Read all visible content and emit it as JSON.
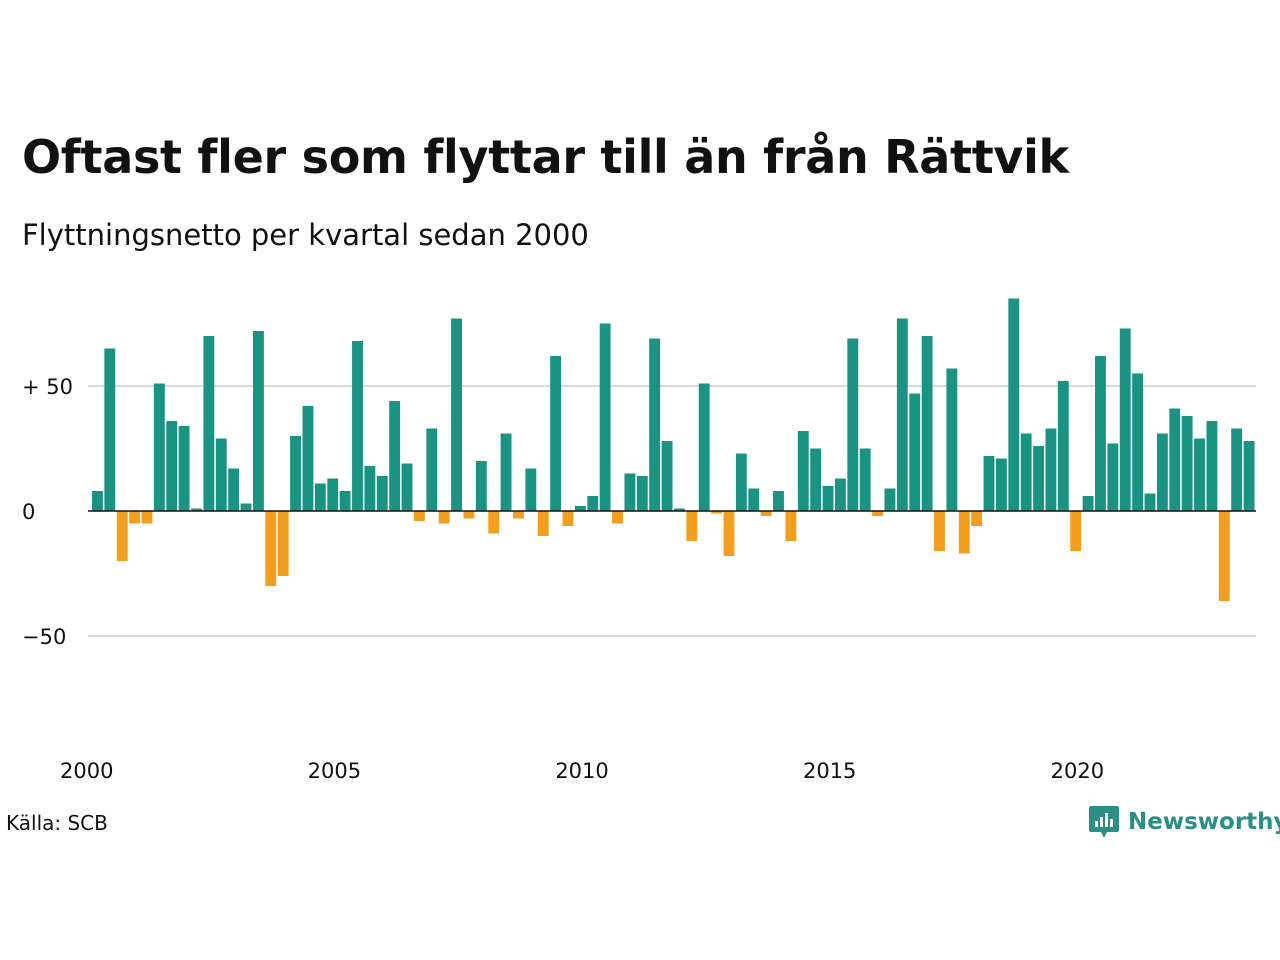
{
  "chart_data": {
    "type": "bar",
    "title": "Oftast fler som flyttar till än från Rättvik",
    "subtitle": "Flyttningsnetto per kvartal sedan 2000",
    "xlabel": "",
    "ylabel": "",
    "x_start_year": 2000,
    "periods_per_year": 4,
    "x_ticks": [
      "2000",
      "2005",
      "2010",
      "2015",
      "2020"
    ],
    "y_ticks": [
      {
        "value": 50,
        "label": "+ 50"
      },
      {
        "value": 0,
        "label": "0"
      },
      {
        "value": -50,
        "label": "−50"
      }
    ],
    "ylim": [
      -90,
      90
    ],
    "grid": true,
    "legend": "none",
    "values": [
      8,
      65,
      -20,
      -5,
      -5,
      51,
      36,
      34,
      1,
      70,
      29,
      17,
      3,
      72,
      -30,
      -26,
      30,
      42,
      11,
      13,
      8,
      68,
      18,
      14,
      44,
      19,
      -4,
      33,
      -5,
      77,
      -3,
      20,
      -9,
      31,
      -3,
      17,
      -10,
      62,
      -6,
      2,
      6,
      75,
      -5,
      15,
      14,
      69,
      28,
      1,
      -12,
      51,
      -1,
      -18,
      23,
      9,
      -2,
      8,
      -12,
      32,
      25,
      10,
      13,
      69,
      25,
      -2,
      9,
      77,
      47,
      70,
      -16,
      57,
      -17,
      -6,
      22,
      21,
      85,
      31,
      26,
      33,
      52,
      -16,
      6,
      62,
      27,
      73,
      55,
      7,
      31,
      41,
      38,
      29,
      36,
      -36,
      33,
      28
    ]
  },
  "colors": {
    "positive": "#1a9482",
    "negative": "#f59e1b",
    "grid": "#d9d9d9",
    "zero_line": "#111111",
    "brand": "#2a8f84"
  },
  "source": "Källa: SCB",
  "logo": {
    "text": "Newsworthy",
    "icon": "newsworthy-logo-icon"
  }
}
